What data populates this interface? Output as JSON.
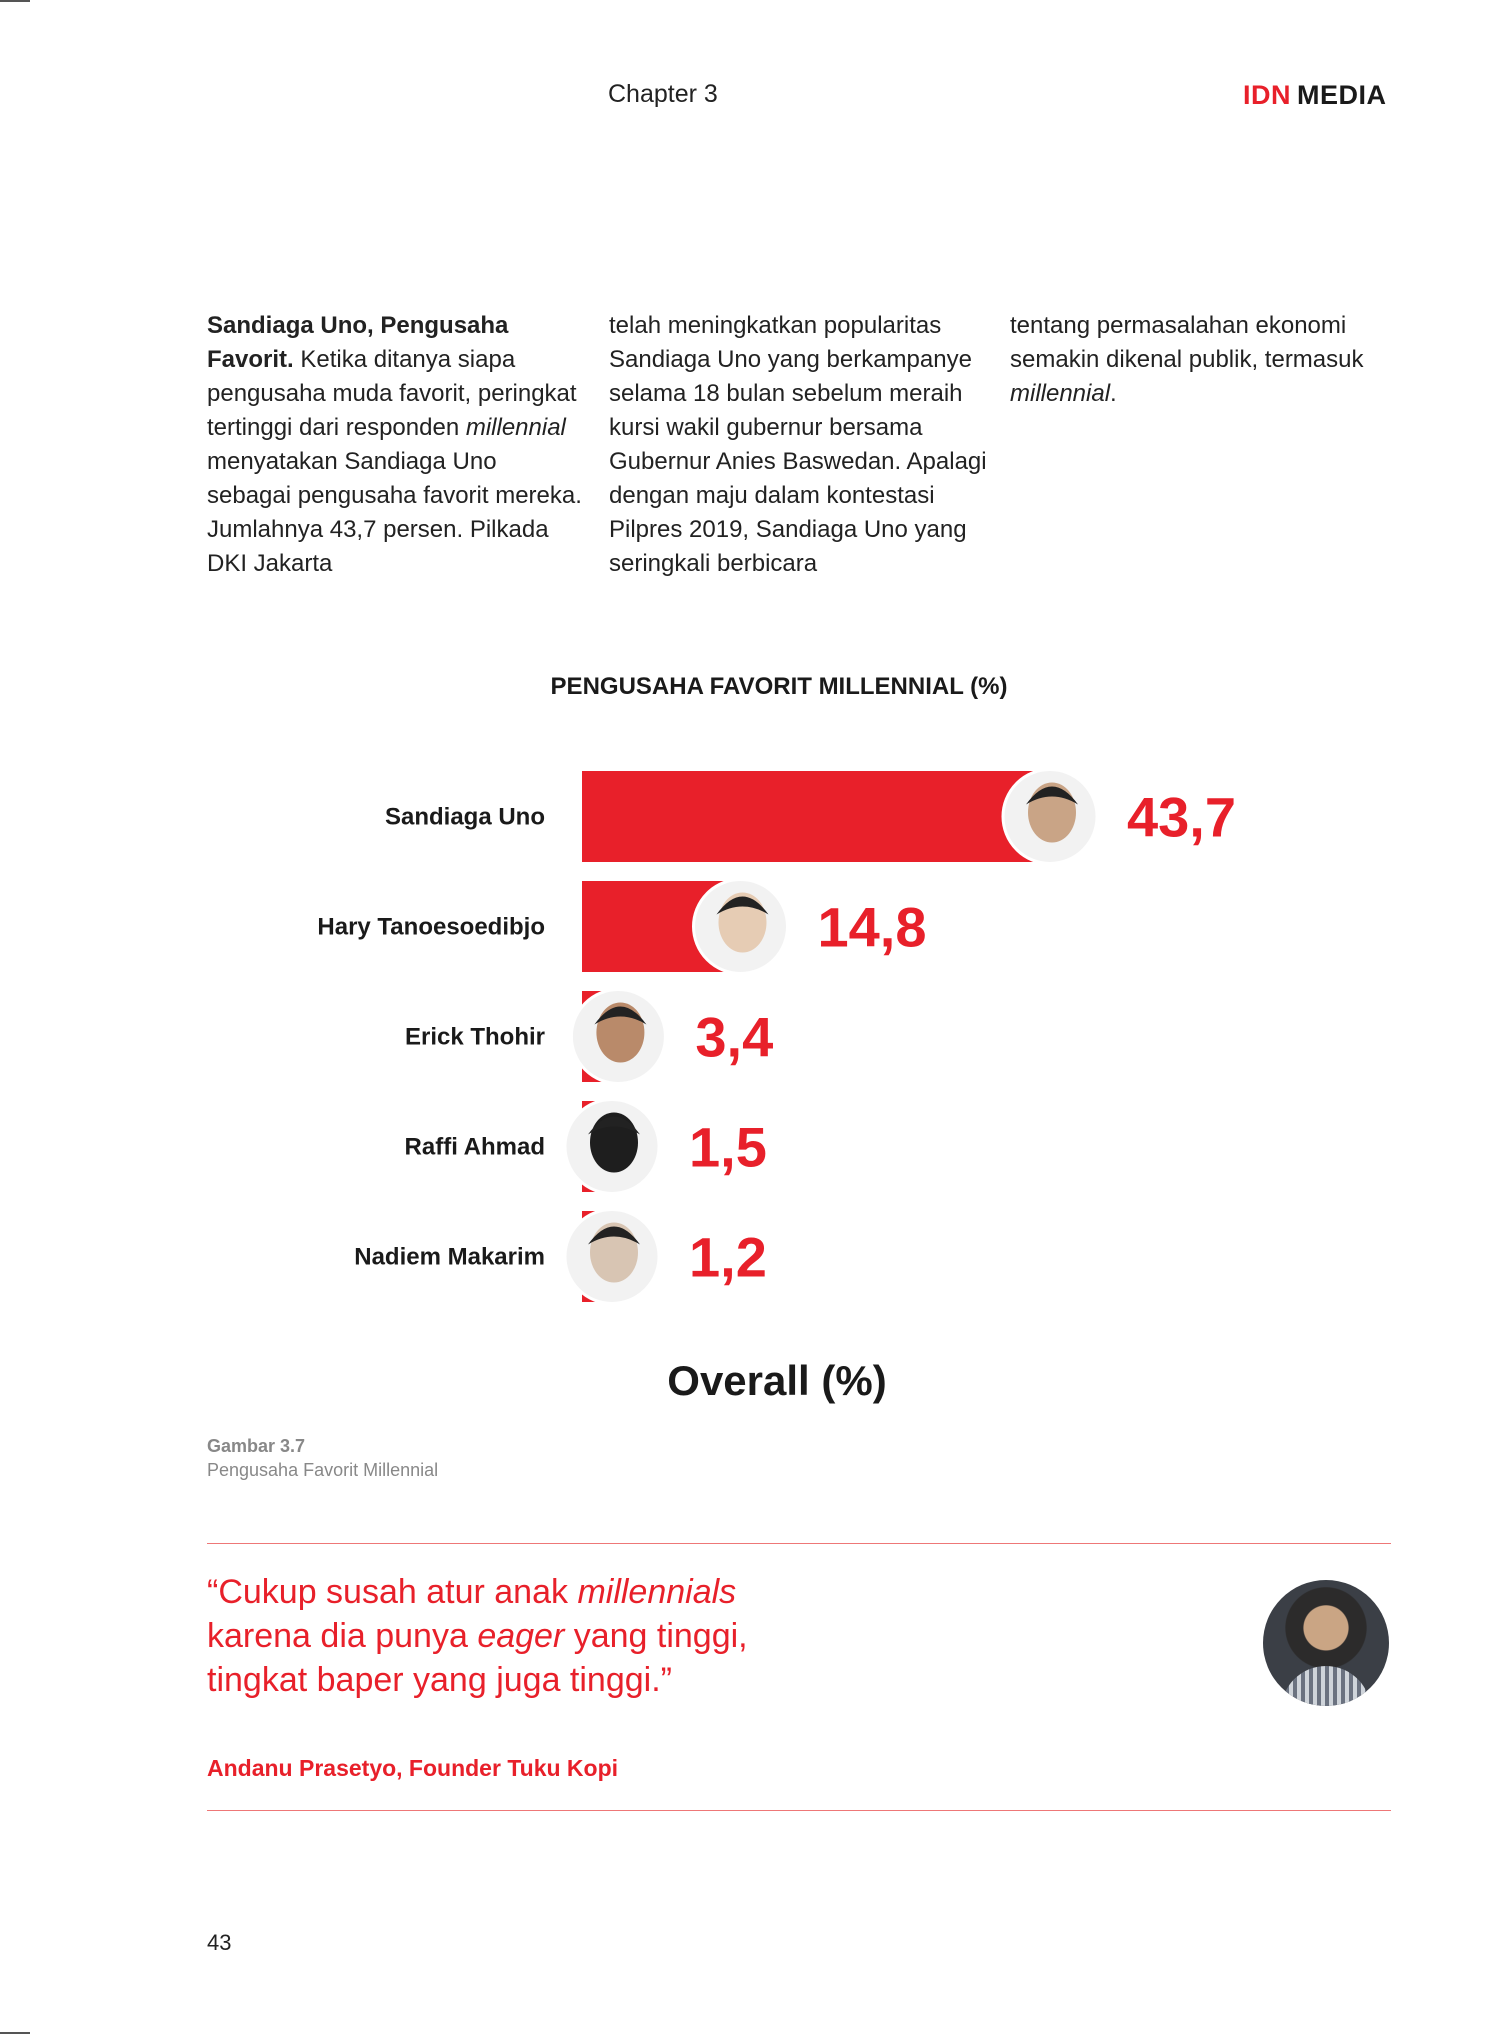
{
  "header": {
    "chapter": "Chapter 3",
    "logo_brand": "IDN",
    "logo_suffix": "MEDIA"
  },
  "body_text": {
    "col1_bold": "Sandiaga Uno, Pengusaha Favorit.",
    "col1_a": " Ketika ditanya siapa pengusaha muda favorit, peringkat tertinggi dari responden ",
    "col1_italic": "millennial",
    "col1_b": " menyatakan Sandiaga Uno sebagai pengusaha favorit mereka. Jumlahnya  43,7 persen. Pilkada DKI Jakarta",
    "col2": "telah meningkatkan popularitas Sandiaga Uno yang berkampanye selama 18 bulan sebelum meraih kursi wakil gubernur bersama Gubernur Anies Baswedan. Apalagi dengan maju dalam kontestasi Pilpres 2019, Sandiaga Uno yang seringkali berbicara",
    "col3_a": "tentang permasalahan ekonomi semakin dikenal publik, termasuk ",
    "col3_italic": "millennial",
    "col3_b": "."
  },
  "chart_data": {
    "type": "bar",
    "orientation": "horizontal",
    "title": "PENGUSAHA FAVORIT MILLENNIAL (%)",
    "categories": [
      "Sandiaga Uno",
      "Hary Tanoesoedibjo",
      "Erick Thohir",
      "Raffi Ahmad",
      "Nadiem Makarim"
    ],
    "values": [
      43.7,
      14.8,
      3.4,
      1.5,
      1.2
    ],
    "value_labels": [
      "43,7",
      "14,8",
      "3,4",
      "1,5",
      "1,2"
    ],
    "xlabel": "Overall (%)",
    "bar_color": "#e8202a",
    "label_color": "#e8202a",
    "grid": false,
    "legend": "none"
  },
  "figure": {
    "label": "Gambar 3.7",
    "caption": "Pengusaha Favorit Millennial"
  },
  "quote": {
    "l1_a": "“Cukup susah atur anak ",
    "l1_i": "millennials",
    "l2_a": "karena dia punya ",
    "l2_i": "eager",
    "l2_b": " yang tinggi,",
    "l3": "tingkat baper yang juga tinggi.”",
    "author": "Andanu Prasetyo, Founder Tuku Kopi"
  },
  "page_number": "43",
  "colors": {
    "accent": "#e8202a",
    "rule": "#ee7777"
  }
}
